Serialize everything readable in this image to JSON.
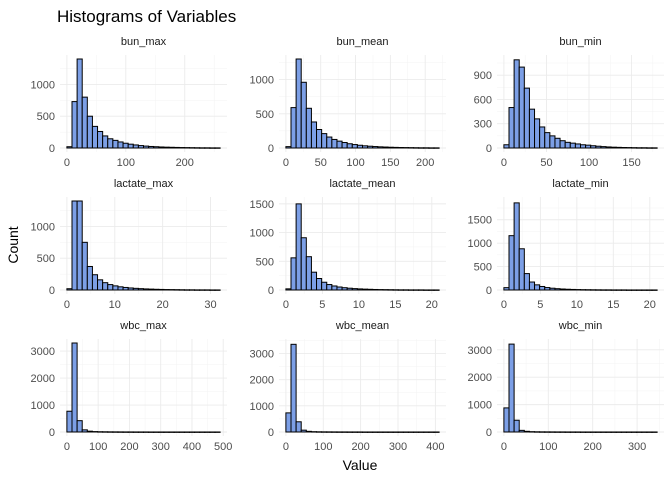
{
  "chart_data": {
    "type": "bar",
    "title": "Histograms of Variables",
    "xlabel": "Value",
    "ylabel": "Count",
    "grid": true,
    "bar_color": "#7c9fe6",
    "bar_edge_color": "#000000",
    "bins": 30,
    "panels": [
      {
        "name": "bun_max",
        "xlim": [
          0,
          260
        ],
        "ylim": [
          0,
          1400
        ],
        "xticks": [
          0,
          100,
          200
        ],
        "yticks": [
          0,
          500,
          1000
        ],
        "values": [
          20,
          730,
          1400,
          800,
          500,
          340,
          260,
          190,
          145,
          120,
          95,
          75,
          60,
          48,
          38,
          30,
          24,
          20,
          16,
          13,
          11,
          9,
          7,
          6,
          5,
          4,
          3,
          3,
          2,
          2
        ]
      },
      {
        "name": "bun_mean",
        "xlim": [
          0,
          220
        ],
        "ylim": [
          0,
          1300
        ],
        "xticks": [
          0,
          50,
          100,
          150,
          200
        ],
        "yticks": [
          0,
          500,
          1000
        ],
        "values": [
          20,
          590,
          1300,
          960,
          580,
          380,
          270,
          210,
          160,
          125,
          100,
          80,
          62,
          50,
          40,
          32,
          26,
          21,
          17,
          14,
          11,
          9,
          7,
          6,
          5,
          4,
          3,
          3,
          2,
          2
        ]
      },
      {
        "name": "bun_min",
        "xlim": [
          0,
          180
        ],
        "ylim": [
          0,
          1100
        ],
        "xticks": [
          0,
          50,
          100,
          150
        ],
        "yticks": [
          0,
          300,
          600,
          900
        ],
        "values": [
          40,
          500,
          1090,
          1000,
          740,
          480,
          360,
          260,
          190,
          150,
          120,
          90,
          70,
          60,
          50,
          40,
          35,
          28,
          22,
          17,
          13,
          10,
          8,
          6,
          5,
          4,
          3,
          3,
          2,
          2
        ]
      },
      {
        "name": "lactate_max",
        "xlim": [
          0,
          32
        ],
        "ylim": [
          0,
          1400
        ],
        "xticks": [
          0,
          10,
          20,
          30
        ],
        "yticks": [
          0,
          500,
          1000
        ],
        "values": [
          20,
          1400,
          1400,
          750,
          370,
          240,
          160,
          115,
          85,
          65,
          50,
          40,
          32,
          26,
          21,
          17,
          14,
          11,
          9,
          7,
          6,
          5,
          4,
          3,
          3,
          2,
          2,
          2,
          1,
          1
        ]
      },
      {
        "name": "lactate_mean",
        "xlim": [
          0,
          21
        ],
        "ylim": [
          0,
          1550
        ],
        "xticks": [
          0,
          5,
          10,
          15,
          20
        ],
        "yticks": [
          0,
          500,
          1000,
          1500
        ],
        "values": [
          20,
          560,
          1500,
          910,
          580,
          310,
          200,
          135,
          95,
          70,
          52,
          40,
          31,
          24,
          19,
          15,
          12,
          9,
          7,
          6,
          5,
          4,
          3,
          3,
          2,
          2,
          2,
          1,
          1,
          1
        ]
      },
      {
        "name": "lactate_min",
        "xlim": [
          0,
          21
        ],
        "ylim": [
          0,
          1900
        ],
        "xticks": [
          0,
          5,
          10,
          15,
          20
        ],
        "yticks": [
          0,
          500,
          1000,
          1500
        ],
        "values": [
          50,
          1160,
          1860,
          880,
          350,
          170,
          110,
          75,
          52,
          38,
          28,
          21,
          16,
          12,
          9,
          7,
          6,
          5,
          4,
          3,
          3,
          2,
          2,
          2,
          1,
          1,
          1,
          1,
          1,
          1
        ]
      },
      {
        "name": "wbc_max",
        "xlim": [
          0,
          490
        ],
        "ylim": [
          0,
          3300
        ],
        "xticks": [
          0,
          100,
          200,
          300,
          400,
          500
        ],
        "yticks": [
          0,
          1000,
          2000,
          3000
        ],
        "values": [
          770,
          3300,
          420,
          80,
          30,
          15,
          10,
          8,
          6,
          5,
          4,
          3,
          3,
          2,
          2,
          2,
          1,
          1,
          1,
          1,
          1,
          1,
          1,
          1,
          1,
          1,
          1,
          1,
          1,
          1
        ]
      },
      {
        "name": "wbc_mean",
        "xlim": [
          0,
          410
        ],
        "ylim": [
          0,
          3400
        ],
        "xticks": [
          0,
          100,
          200,
          300,
          400
        ],
        "yticks": [
          0,
          1000,
          2000,
          3000
        ],
        "values": [
          730,
          3350,
          390,
          70,
          25,
          12,
          8,
          6,
          5,
          4,
          3,
          3,
          2,
          2,
          2,
          1,
          1,
          1,
          1,
          1,
          1,
          1,
          1,
          1,
          1,
          1,
          1,
          1,
          1,
          1
        ]
      },
      {
        "name": "wbc_min",
        "xlim": [
          0,
          345
        ],
        "ylim": [
          0,
          3250
        ],
        "xticks": [
          0,
          100,
          200,
          300
        ],
        "yticks": [
          0,
          1000,
          2000,
          3000
        ],
        "values": [
          880,
          3210,
          430,
          60,
          25,
          12,
          8,
          6,
          5,
          4,
          3,
          3,
          2,
          2,
          2,
          1,
          1,
          1,
          1,
          1,
          1,
          1,
          1,
          1,
          1,
          1,
          1,
          1,
          1,
          1
        ]
      }
    ]
  }
}
